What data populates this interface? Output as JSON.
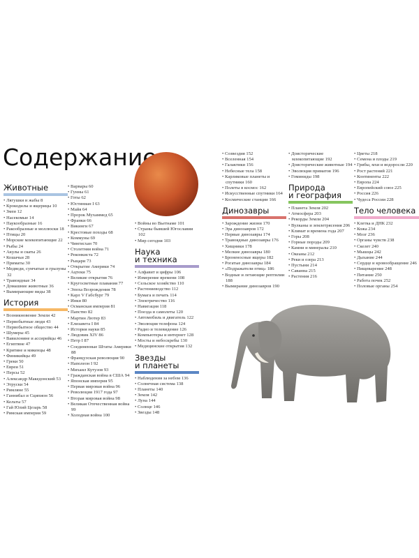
{
  "title": "Содержание",
  "columns": [
    [
      {
        "heading": "Животные",
        "color": "#a9c4e2",
        "items": [
          "Лягушки и жабы 8",
          "Крокодилы и ящерицы 10",
          "Змеи 12",
          "Насекомые 14",
          "Паукообразные 16",
          "Ракообразные и моллюски 18",
          "Птицы 20",
          "Морские млекопитающие 22",
          "Рыбы 24",
          "Акулы и скаты 26",
          "Кошачьи 28",
          "Приматы 30",
          "Медведи, сумчатые и грызуны 32",
          "Травоядные 34",
          "Домашние животные 36",
          "Вымирающие виды 38"
        ]
      },
      {
        "heading": "История",
        "color": "#f6b866",
        "items": [
          "Возникновение Земли 42",
          "Первобытные люди 43",
          "Первобытное общество 44",
          "Шумеры 45",
          "Вавилоняне и ассирийцы 46",
          "Египтяне 47",
          "Критяне и микенцы 48",
          "Финикийцы 49",
          "Греки 50",
          "Евреи 51",
          "Персы 52",
          "Александр Македонский 53",
          "Этруски 54",
          "Римляне 55",
          "Ганнибал и Сципион 56",
          "Кельты 57",
          "Гай Юлий Цезарь 58",
          "Римская империя 59"
        ]
      }
    ],
    [
      {
        "items": [
          "Варвары 60",
          "Гунны 61",
          "Готы 62",
          "Юстиниан I 63",
          "Майя 64",
          "Пророк Мухаммед 65",
          "Франки 66",
          "Викинги 67",
          "Крестовые походы 68",
          "Коммуны 69",
          "Чингисхан 70",
          "Столетняя война 71",
          "Реконкиста 72",
          "Рыцари 73",
          "Открытие Америки 74",
          "Ацтеки 75",
          "Великие открытия 76",
          "Кругосветные плавания 77",
          "Эпоха Возрождения 78",
          "Карл V Габсбург 79",
          "Инки 80",
          "Османская империя 81",
          "Папство 82",
          "Мартин Лютер 83",
          "Елизавета I 84",
          "История науки 85",
          "Людовик XIV 86",
          "Петр I 87",
          "Соединенные Штаты Америки 88",
          "Французская революция 90",
          "Наполеон I 92",
          "Михаил Кутузов 93",
          "Гражданская война в США 94",
          "Японская империя 95",
          "Первая мировая война 96",
          "Революция 1917 года 97",
          "Вторая мировая война 98",
          "Великая Отечественная война 99",
          "Холодная война 100"
        ]
      }
    ],
    [
      {
        "items": [
          "Войны во Вьетнаме 101",
          "Страны бывшей Югославии 102",
          "Мир сегодня 103"
        ]
      },
      {
        "heading": "Наука\nи техника",
        "color": "#a79bcb",
        "items": [
          "Алфавит и цифры 106",
          "Измерение времени 108",
          "Сельское хозяйство 110",
          "Растениеводство 112",
          "Бумага и печать 114",
          "Электричество 116",
          "Навигация 118",
          "Поезда и самолеты 120",
          "Автомобиль и двигатель 122",
          "Эволюция телефона 124",
          "Радио и телевидение 126",
          "Компьютеры и интернет 128",
          "Мосты и небоскребы 130",
          "Медицинские открытия 132"
        ]
      },
      {
        "heading": "Звезды\nи планеты",
        "color": "#5b86c4",
        "items": [
          "Наблюдения за небом 136",
          "Солнечная система 138",
          "Планеты 140",
          "Земля 142",
          "Луна 144",
          "Солнце 146",
          "Звезды 148"
        ]
      }
    ],
    [
      {
        "items": [
          "Созвездия 152",
          "Вселенная 154",
          "Галактики 156",
          "Небесные тела 158",
          "Карликовые планеты и спутники 160",
          "Полеты в космос 162",
          "Искусственные спутники 164",
          "Космические станции 166"
        ]
      },
      {
        "heading": "Динозавры",
        "color": "#d8726c",
        "items": [
          "Зарождение жизни 170",
          "Эра динозавров 172",
          "Первые динозавры 174",
          "Травоядные динозавры 176",
          "Хищники 178",
          "Мелкие динозавры 180",
          "Броненосные ящеры 182",
          "Рогатые динозавры 184",
          "«Подражатели птиц» 186",
          "Водные и летающие рептилии 188",
          "Вымирание динозавров 190"
        ]
      }
    ],
    [
      {
        "items": [
          "Доисторические млекопитающие 192",
          "Доисторические животные 194",
          "Эволюция приматов 196",
          "Гоминиды 198"
        ]
      },
      {
        "heading": "Природа\nи география",
        "color": "#86c55f",
        "items": [
          "Планета Земля 202",
          "Атмосфера 203",
          "Рекорды Земли 204",
          "Вулканы и землетрясения 206",
          "Климат и времена года 207",
          "Горы 208",
          "Горные породы 209",
          "Камни и минералы 210",
          "Океаны 212",
          "Реки и озера 213",
          "Пустыни 214",
          "Саванна 215",
          "Растения 216"
        ]
      }
    ],
    [
      {
        "items": [
          "Цветы 218",
          "Семена и плоды 219",
          "Грибы, мхи и водоросли 220",
          "Рост растений 221",
          "Континенты 222",
          "Европа 224",
          "Европейский союз 225",
          "Россия 226",
          "Чудеса России 228"
        ]
      },
      {
        "heading": "Тело человека",
        "color": "#f0aacb",
        "items": [
          "Клетка и ДНК 232",
          "Кожа 234",
          "Мозг 236",
          "Органы чувств 238",
          "Скелет 240",
          "Мышцы 242",
          "Дыхание 244",
          "Сердце и кровообращение 246",
          "Пищеварение 248",
          "Питание 250",
          "Работа почек 252",
          "Половые органы 254"
        ]
      }
    ]
  ]
}
